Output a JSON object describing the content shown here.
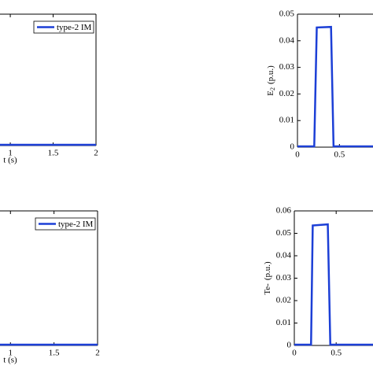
{
  "chart_data": [
    {
      "type": "line",
      "xlabel": "t (s)",
      "xlim": [
        0.88,
        2
      ],
      "ylim": [
        0,
        1
      ],
      "xticks": [
        1,
        1.5,
        2
      ],
      "yticks": [],
      "legend": "upper right",
      "series": [
        {
          "name": "type-2 IM",
          "color": "#1c3fd6",
          "x": [
            0.88,
            2
          ],
          "values": [
            0,
            0
          ]
        }
      ]
    },
    {
      "type": "line",
      "ylabel": {
        "main": "E",
        "sub": "2",
        "unit": "(p.u.)"
      },
      "xlim": [
        0,
        0.9
      ],
      "ylim": [
        0,
        0.05
      ],
      "xticks": [
        0,
        0.5
      ],
      "yticks": [
        0,
        0.01,
        0.02,
        0.03,
        0.04,
        0.05
      ],
      "series": [
        {
          "color": "#1c3fd6",
          "x": [
            0,
            0.2,
            0.23,
            0.4,
            0.43,
            0.9
          ],
          "values": [
            0,
            0,
            0.045,
            0.0452,
            0,
            0
          ]
        }
      ]
    },
    {
      "type": "line",
      "xlabel": "t (s)",
      "xlim": [
        0.88,
        2
      ],
      "ylim": [
        0,
        1
      ],
      "xticks": [
        1,
        1.5,
        2
      ],
      "yticks": [],
      "legend": "upper right",
      "series": [
        {
          "name": "type-2 IM",
          "color": "#1c3fd6",
          "x": [
            0.88,
            2
          ],
          "values": [
            0,
            0
          ]
        }
      ]
    },
    {
      "type": "line",
      "ylabel": {
        "main": "Te-",
        "unit": "(p.u.)"
      },
      "xlim": [
        0,
        0.94
      ],
      "ylim": [
        0,
        0.06
      ],
      "xticks": [
        0,
        0.5
      ],
      "yticks": [
        0,
        0.01,
        0.02,
        0.03,
        0.04,
        0.05,
        0.06
      ],
      "series": [
        {
          "color": "#1c3fd6",
          "x": [
            0,
            0.2,
            0.22,
            0.4,
            0.43,
            0.94
          ],
          "values": [
            0,
            0,
            0.0535,
            0.054,
            0,
            0
          ]
        }
      ]
    }
  ]
}
